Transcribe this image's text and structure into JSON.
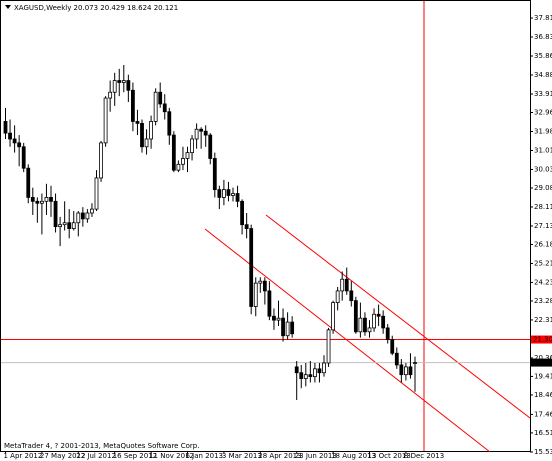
{
  "chart_data": {
    "type": "candlestick",
    "title": "XAGUSD,Weekly  20.073 20.429 18.624 20.121",
    "footer": "MetaTrader 4, ? 2001-2013, MetaQuotes Software Corp.",
    "categories": [
      "1 Apr 2012",
      null,
      null,
      null,
      null,
      null,
      null,
      null,
      "27 May 2012",
      null,
      null,
      null,
      null,
      null,
      null,
      null,
      "22 Jul 2012",
      null,
      null,
      null,
      null,
      null,
      null,
      null,
      "16 Sep 2012",
      null,
      null,
      null,
      null,
      null,
      null,
      null,
      "11 Nov 2012",
      null,
      null,
      null,
      null,
      null,
      null,
      null,
      "6 Jan 2013",
      null,
      null,
      null,
      null,
      null,
      null,
      null,
      "3 Mar 2013",
      null,
      null,
      null,
      null,
      null,
      null,
      null,
      "28 Apr 2013",
      null,
      null,
      null,
      null,
      null,
      null,
      null,
      "23 Jun 2013",
      null,
      null,
      null,
      null,
      null,
      null,
      null,
      "18 Aug 2013",
      null,
      null,
      null,
      null,
      null,
      null,
      null,
      "13 Oct 2013",
      null,
      null,
      null,
      null,
      null,
      null,
      null,
      "8 Dec 2013",
      null,
      null
    ],
    "open": [
      32.5,
      31.9,
      31.6,
      31.4,
      31.2,
      30.1,
      28.6,
      28.4,
      28.3,
      28.4,
      28.6,
      28.4,
      27.1,
      27.2,
      27.3,
      27.0,
      27.3,
      27.8,
      27.5,
      27.8,
      28.0,
      29.6,
      31.4,
      33.7,
      34.0,
      34.6,
      34.5,
      34.6,
      34.1,
      32.5,
      32.4,
      31.2,
      31.6,
      32.5,
      34.0,
      33.4,
      33.0,
      31.8,
      30.0,
      30.3,
      30.6,
      30.9,
      31.6,
      32.1,
      32.0,
      31.8,
      30.6,
      29.0,
      28.6,
      29.0,
      28.7,
      28.8,
      28.4,
      27.2,
      27.0,
      23.0,
      24.2,
      24.3,
      23.8,
      22.5,
      22.3,
      22.4,
      21.5,
      22.2,
      19.9,
      19.6,
      19.3,
      19.5,
      19.4,
      19.8,
      19.6,
      20.1,
      21.8,
      23.2,
      23.8,
      24.4,
      23.8,
      23.3,
      21.7,
      22.4,
      21.7,
      21.9,
      22.6,
      22.5,
      21.9,
      21.3,
      20.6,
      20.0,
      19.5,
      19.9,
      20.073
    ],
    "high": [
      33.2,
      32.6,
      32.3,
      31.8,
      31.4,
      30.3,
      29.1,
      28.6,
      28.8,
      29.3,
      29.2,
      28.8,
      27.6,
      28.4,
      28.0,
      27.9,
      27.9,
      28.1,
      28.0,
      28.3,
      30.0,
      31.5,
      33.8,
      34.6,
      35.0,
      35.2,
      35.4,
      34.9,
      34.5,
      33.1,
      32.6,
      32.1,
      32.8,
      34.2,
      34.5,
      33.9,
      33.2,
      32.0,
      30.5,
      31.2,
      31.2,
      31.8,
      32.4,
      32.2,
      32.3,
      31.9,
      30.9,
      29.2,
      29.5,
      29.4,
      29.1,
      29.2,
      28.5,
      27.8,
      27.2,
      24.5,
      24.5,
      24.5,
      24.3,
      22.9,
      23.3,
      22.9,
      22.7,
      22.5,
      20.2,
      20.0,
      20.1,
      20.2,
      20.1,
      20.1,
      20.5,
      21.9,
      23.3,
      24.0,
      24.8,
      25.0,
      24.3,
      23.5,
      23.2,
      22.7,
      22.3,
      22.9,
      23.1,
      22.8,
      22.1,
      21.5,
      20.9,
      20.3,
      20.1,
      20.6,
      20.429
    ],
    "low": [
      31.6,
      31.2,
      30.9,
      30.2,
      29.9,
      28.3,
      27.7,
      27.3,
      26.7,
      27.7,
      27.6,
      26.8,
      26.1,
      26.9,
      26.5,
      26.9,
      26.6,
      27.1,
      27.3,
      27.6,
      27.9,
      29.4,
      31.2,
      33.0,
      33.3,
      33.8,
      34.0,
      33.5,
      32.0,
      31.8,
      30.9,
      30.8,
      31.1,
      32.3,
      33.2,
      32.6,
      31.3,
      29.9,
      29.9,
      30.0,
      29.9,
      30.5,
      31.1,
      31.1,
      31.2,
      30.3,
      28.6,
      28.0,
      28.2,
      28.4,
      28.4,
      28.1,
      26.7,
      26.5,
      22.6,
      22.5,
      23.7,
      23.1,
      22.3,
      21.8,
      22.0,
      21.2,
      21.3,
      21.4,
      18.2,
      18.8,
      18.9,
      19.1,
      19.1,
      19.1,
      19.4,
      19.9,
      21.6,
      22.8,
      23.3,
      23.6,
      23.0,
      21.6,
      21.4,
      21.5,
      21.4,
      21.7,
      22.0,
      21.6,
      21.1,
      20.5,
      19.8,
      19.1,
      19.2,
      19.3,
      18.624
    ],
    "close": [
      31.9,
      31.6,
      31.4,
      31.2,
      30.1,
      28.6,
      28.4,
      28.3,
      28.4,
      28.6,
      28.4,
      27.1,
      27.2,
      27.3,
      27.0,
      27.3,
      27.8,
      27.5,
      27.8,
      28.0,
      29.6,
      31.4,
      33.7,
      34.0,
      34.6,
      34.5,
      34.6,
      34.1,
      32.5,
      32.4,
      31.2,
      31.6,
      32.5,
      34.0,
      33.4,
      33.0,
      31.8,
      30.0,
      30.3,
      30.6,
      30.9,
      31.6,
      32.1,
      32.0,
      31.8,
      30.6,
      29.0,
      28.6,
      29.0,
      28.7,
      28.8,
      28.4,
      27.2,
      27.0,
      23.0,
      24.2,
      24.3,
      23.8,
      22.5,
      22.3,
      22.4,
      21.5,
      22.2,
      21.6,
      19.6,
      19.3,
      19.5,
      19.4,
      19.8,
      19.6,
      20.1,
      21.8,
      23.2,
      23.8,
      24.4,
      23.8,
      23.3,
      21.7,
      22.4,
      21.7,
      21.9,
      22.6,
      22.5,
      21.9,
      21.3,
      20.6,
      20.0,
      19.5,
      19.9,
      19.5,
      20.121
    ],
    "up_color": "#ffffff",
    "down_color": "#000000",
    "wick_color": "#000000",
    "ylim": [
      15.53,
      38.53
    ],
    "yticks": [
      {
        "value": 37.81,
        "label": "37.810"
      },
      {
        "value": 36.835,
        "label": "36.835"
      },
      {
        "value": 35.86,
        "label": "35.860"
      },
      {
        "value": 34.885,
        "label": "34.885"
      },
      {
        "value": 33.91,
        "label": "33.910"
      },
      {
        "value": 32.96,
        "label": "32.960"
      },
      {
        "value": 31.985,
        "label": "31.985"
      },
      {
        "value": 31.01,
        "label": "31.010"
      },
      {
        "value": 30.035,
        "label": "30.035"
      },
      {
        "value": 29.085,
        "label": "29.085"
      },
      {
        "value": 28.11,
        "label": "28.110"
      },
      {
        "value": 27.135,
        "label": "27.135"
      },
      {
        "value": 26.185,
        "label": "26.185"
      },
      {
        "value": 25.21,
        "label": "25.210"
      },
      {
        "value": 24.235,
        "label": "24.235"
      },
      {
        "value": 23.285,
        "label": "23.285"
      },
      {
        "value": 22.31,
        "label": "22.310"
      },
      {
        "value": 20.36,
        "label": "20.360"
      },
      {
        "value": 19.41,
        "label": "19.410"
      },
      {
        "value": 18.46,
        "label": "18.460"
      },
      {
        "value": 17.46,
        "label": "17.460"
      },
      {
        "value": 16.51,
        "label": "16.510"
      },
      {
        "value": 15.53,
        "label": "15.530"
      }
    ],
    "hline": {
      "value": 21.304,
      "label": "21.304",
      "color": "#ff0000"
    },
    "bid": {
      "value": 20.121,
      "label": "20.121",
      "color": "#c0c0c0"
    }
  }
}
